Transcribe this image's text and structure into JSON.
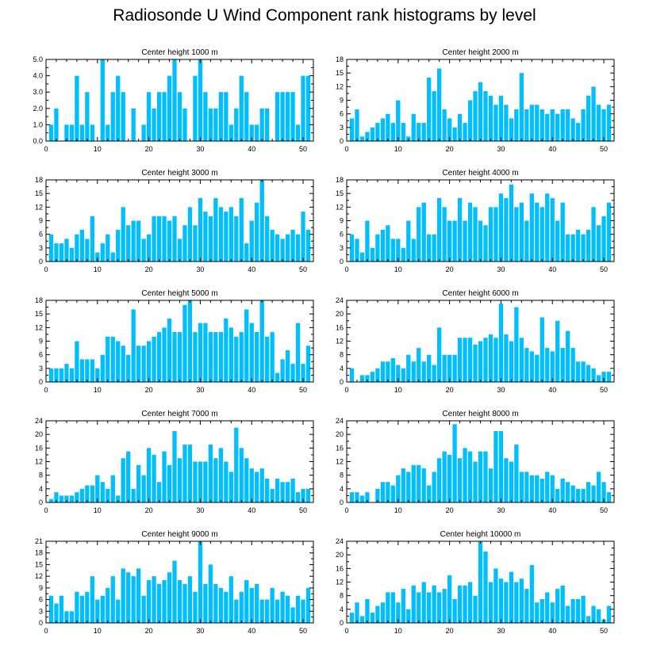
{
  "figure": {
    "title": "Radiosonde U Wind Component rank histograms by level",
    "bar_color": "#00bfff",
    "axis_color": "#000000"
  },
  "chart_data": [
    {
      "type": "bar",
      "title": "Center height 1000 m",
      "x": [
        1,
        2,
        3,
        4,
        5,
        6,
        7,
        8,
        9,
        10,
        11,
        12,
        13,
        14,
        15,
        16,
        17,
        18,
        19,
        20,
        21,
        22,
        23,
        24,
        25,
        26,
        27,
        28,
        29,
        30,
        31,
        32,
        33,
        34,
        35,
        36,
        37,
        38,
        39,
        40,
        41,
        42,
        43,
        44,
        45,
        46,
        47,
        48,
        49,
        50,
        51
      ],
      "values": [
        1,
        2,
        0,
        1,
        1,
        4,
        1,
        3,
        1,
        0,
        5,
        1,
        3,
        4,
        3,
        0,
        2,
        0,
        1,
        3,
        2,
        3,
        3,
        4,
        5,
        3,
        2,
        0,
        4,
        5,
        3,
        2,
        2,
        3,
        3,
        1,
        2,
        4,
        3,
        1,
        1,
        2,
        2,
        0,
        3,
        3,
        3,
        3,
        1,
        4,
        4
      ],
      "ylim": [
        0,
        5
      ],
      "yticks": [
        "0.0",
        "1.0",
        "2.0",
        "3.0",
        "4.0",
        "5.0"
      ],
      "ytick_values": [
        0,
        1,
        2,
        3,
        4,
        5
      ],
      "xlim": [
        0,
        52
      ],
      "xticks": [
        "0",
        "10",
        "20",
        "30",
        "40",
        "50"
      ],
      "xtick_values": [
        0,
        10,
        20,
        30,
        40,
        50
      ]
    },
    {
      "type": "bar",
      "title": "Center height 2000 m",
      "x": [
        1,
        2,
        3,
        4,
        5,
        6,
        7,
        8,
        9,
        10,
        11,
        12,
        13,
        14,
        15,
        16,
        17,
        18,
        19,
        20,
        21,
        22,
        23,
        24,
        25,
        26,
        27,
        28,
        29,
        30,
        31,
        32,
        33,
        34,
        35,
        36,
        37,
        38,
        39,
        40,
        41,
        42,
        43,
        44,
        45,
        46,
        47,
        48,
        49,
        50,
        51
      ],
      "values": [
        5,
        7,
        1,
        2,
        3,
        4,
        5,
        6,
        4,
        9,
        4,
        1,
        6,
        4,
        4,
        14,
        11,
        16,
        7,
        5,
        3,
        6,
        4,
        9,
        11,
        13,
        11,
        10,
        8,
        10,
        8,
        5,
        7,
        15,
        7,
        8,
        8,
        7,
        6,
        7,
        6,
        7,
        7,
        5,
        4,
        7,
        10,
        12,
        8,
        7,
        8
      ],
      "ylim": [
        0,
        18
      ],
      "yticks": [
        "0",
        "3",
        "6",
        "9",
        "12",
        "15",
        "18"
      ],
      "ytick_values": [
        0,
        3,
        6,
        9,
        12,
        15,
        18
      ],
      "xlim": [
        0,
        52
      ],
      "xticks": [
        "0",
        "10",
        "20",
        "30",
        "40",
        "50"
      ],
      "xtick_values": [
        0,
        10,
        20,
        30,
        40,
        50
      ]
    },
    {
      "type": "bar",
      "title": "Center height 3000 m",
      "x": [
        1,
        2,
        3,
        4,
        5,
        6,
        7,
        8,
        9,
        10,
        11,
        12,
        13,
        14,
        15,
        16,
        17,
        18,
        19,
        20,
        21,
        22,
        23,
        24,
        25,
        26,
        27,
        28,
        29,
        30,
        31,
        32,
        33,
        34,
        35,
        36,
        37,
        38,
        39,
        40,
        41,
        42,
        43,
        44,
        45,
        46,
        47,
        48,
        49,
        50,
        51
      ],
      "values": [
        6,
        4,
        4,
        5,
        3,
        6,
        7,
        5,
        10,
        2,
        4,
        6,
        2,
        7,
        12,
        8,
        9,
        9,
        5,
        6,
        10,
        10,
        10,
        9,
        10,
        5,
        8,
        12,
        8,
        14,
        11,
        10,
        14,
        12,
        11,
        12,
        10,
        14,
        4,
        9,
        13,
        18,
        10,
        7,
        6,
        5,
        6,
        7,
        6,
        11,
        7
      ],
      "ylim": [
        0,
        18
      ],
      "yticks": [
        "0",
        "3",
        "6",
        "9",
        "12",
        "15",
        "18"
      ],
      "ytick_values": [
        0,
        3,
        6,
        9,
        12,
        15,
        18
      ],
      "xlim": [
        0,
        52
      ],
      "xticks": [
        "0",
        "10",
        "20",
        "30",
        "40",
        "50"
      ],
      "xtick_values": [
        0,
        10,
        20,
        30,
        40,
        50
      ]
    },
    {
      "type": "bar",
      "title": "Center height 4000 m",
      "x": [
        1,
        2,
        3,
        4,
        5,
        6,
        7,
        8,
        9,
        10,
        11,
        12,
        13,
        14,
        15,
        16,
        17,
        18,
        19,
        20,
        21,
        22,
        23,
        24,
        25,
        26,
        27,
        28,
        29,
        30,
        31,
        32,
        33,
        34,
        35,
        36,
        37,
        38,
        39,
        40,
        41,
        42,
        43,
        44,
        45,
        46,
        47,
        48,
        49,
        50,
        51
      ],
      "values": [
        6,
        5,
        2,
        9,
        3,
        6,
        7,
        8,
        5,
        5,
        3,
        9,
        5,
        12,
        13,
        6,
        6,
        14,
        12,
        9,
        9,
        14,
        9,
        13,
        12,
        9,
        8,
        12,
        12,
        15,
        14,
        17,
        12,
        13,
        9,
        15,
        13,
        12,
        15,
        14,
        9,
        13,
        6,
        6,
        7,
        6,
        7,
        12,
        8,
        10,
        13
      ],
      "ylim": [
        0,
        18
      ],
      "yticks": [
        "0",
        "3",
        "6",
        "9",
        "12",
        "15",
        "18"
      ],
      "ytick_values": [
        0,
        3,
        6,
        9,
        12,
        15,
        18
      ],
      "xlim": [
        0,
        52
      ],
      "xticks": [
        "0",
        "10",
        "20",
        "30",
        "40",
        "50"
      ],
      "xtick_values": [
        0,
        10,
        20,
        30,
        40,
        50
      ]
    },
    {
      "type": "bar",
      "title": "Center height 5000 m",
      "x": [
        1,
        2,
        3,
        4,
        5,
        6,
        7,
        8,
        9,
        10,
        11,
        12,
        13,
        14,
        15,
        16,
        17,
        18,
        19,
        20,
        21,
        22,
        23,
        24,
        25,
        26,
        27,
        28,
        29,
        30,
        31,
        32,
        33,
        34,
        35,
        36,
        37,
        38,
        39,
        40,
        41,
        42,
        43,
        44,
        45,
        46,
        47,
        48,
        49,
        50,
        51
      ],
      "values": [
        3,
        3,
        3,
        4,
        3,
        9,
        5,
        5,
        5,
        3,
        6,
        10,
        10,
        9,
        8,
        6,
        16,
        8,
        8,
        9,
        10,
        11,
        12,
        14,
        11,
        11,
        17,
        18,
        11,
        13,
        13,
        11,
        11,
        11,
        14,
        12,
        10,
        11,
        16,
        13,
        11,
        18,
        10,
        11,
        2,
        5,
        7,
        4,
        13,
        4,
        8
      ],
      "ylim": [
        0,
        18
      ],
      "yticks": [
        "0",
        "3",
        "6",
        "9",
        "12",
        "15",
        "18"
      ],
      "ytick_values": [
        0,
        3,
        6,
        9,
        12,
        15,
        18
      ],
      "xlim": [
        0,
        52
      ],
      "xticks": [
        "0",
        "10",
        "20",
        "30",
        "40",
        "50"
      ],
      "xtick_values": [
        0,
        10,
        20,
        30,
        40,
        50
      ]
    },
    {
      "type": "bar",
      "title": "Center height 6000 m",
      "x": [
        1,
        2,
        3,
        4,
        5,
        6,
        7,
        8,
        9,
        10,
        11,
        12,
        13,
        14,
        15,
        16,
        17,
        18,
        19,
        20,
        21,
        22,
        23,
        24,
        25,
        26,
        27,
        28,
        29,
        30,
        31,
        32,
        33,
        34,
        35,
        36,
        37,
        38,
        39,
        40,
        41,
        42,
        43,
        44,
        45,
        46,
        47,
        48,
        49,
        50,
        51
      ],
      "values": [
        4,
        0,
        2,
        2,
        3,
        4,
        6,
        6,
        7,
        5,
        4,
        8,
        6,
        10,
        6,
        8,
        5,
        16,
        8,
        8,
        8,
        13,
        13,
        13,
        11,
        12,
        13,
        14,
        13,
        23,
        14,
        12,
        22,
        13,
        10,
        9,
        8,
        19,
        10,
        9,
        18,
        10,
        15,
        10,
        6,
        6,
        5,
        4,
        2,
        3,
        3
      ],
      "ylim": [
        0,
        24
      ],
      "yticks": [
        "0",
        "4",
        "8",
        "12",
        "16",
        "20",
        "24"
      ],
      "ytick_values": [
        0,
        4,
        8,
        12,
        16,
        20,
        24
      ],
      "xlim": [
        0,
        52
      ],
      "xticks": [
        "0",
        "10",
        "20",
        "30",
        "40",
        "50"
      ],
      "xtick_values": [
        0,
        10,
        20,
        30,
        40,
        50
      ]
    },
    {
      "type": "bar",
      "title": "Center height 7000 m",
      "x": [
        1,
        2,
        3,
        4,
        5,
        6,
        7,
        8,
        9,
        10,
        11,
        12,
        13,
        14,
        15,
        16,
        17,
        18,
        19,
        20,
        21,
        22,
        23,
        24,
        25,
        26,
        27,
        28,
        29,
        30,
        31,
        32,
        33,
        34,
        35,
        36,
        37,
        38,
        39,
        40,
        41,
        42,
        43,
        44,
        45,
        46,
        47,
        48,
        49,
        50,
        51
      ],
      "values": [
        1,
        3,
        2,
        2,
        2,
        3,
        4,
        5,
        5,
        8,
        6,
        4,
        8,
        2,
        13,
        15,
        4,
        11,
        8,
        16,
        14,
        6,
        15,
        11,
        21,
        13,
        17,
        17,
        12,
        12,
        12,
        17,
        13,
        16,
        12,
        9,
        22,
        16,
        13,
        10,
        9,
        10,
        7,
        4,
        7,
        6,
        6,
        7,
        3,
        4,
        4
      ],
      "ylim": [
        0,
        24
      ],
      "yticks": [
        "0",
        "4",
        "8",
        "12",
        "16",
        "20",
        "24"
      ],
      "ytick_values": [
        0,
        4,
        8,
        12,
        16,
        20,
        24
      ],
      "xlim": [
        0,
        52
      ],
      "xticks": [
        "0",
        "10",
        "20",
        "30",
        "40",
        "50"
      ],
      "xtick_values": [
        0,
        10,
        20,
        30,
        40,
        50
      ]
    },
    {
      "type": "bar",
      "title": "Center height 8000 m",
      "x": [
        1,
        2,
        3,
        4,
        5,
        6,
        7,
        8,
        9,
        10,
        11,
        12,
        13,
        14,
        15,
        16,
        17,
        18,
        19,
        20,
        21,
        22,
        23,
        24,
        25,
        26,
        27,
        28,
        29,
        30,
        31,
        32,
        33,
        34,
        35,
        36,
        37,
        38,
        39,
        40,
        41,
        42,
        43,
        44,
        45,
        46,
        47,
        48,
        49,
        50,
        51
      ],
      "values": [
        3,
        3,
        2,
        3,
        0,
        4,
        6,
        6,
        5,
        8,
        10,
        9,
        11,
        11,
        10,
        5,
        9,
        13,
        15,
        14,
        23,
        13,
        16,
        15,
        12,
        15,
        15,
        10,
        21,
        21,
        13,
        12,
        17,
        9,
        9,
        8,
        8,
        7,
        9,
        8,
        4,
        7,
        6,
        5,
        4,
        4,
        6,
        5,
        9,
        6,
        3
      ],
      "ylim": [
        0,
        24
      ],
      "yticks": [
        "0",
        "4",
        "8",
        "12",
        "16",
        "20",
        "24"
      ],
      "ytick_values": [
        0,
        4,
        8,
        12,
        16,
        20,
        24
      ],
      "xlim": [
        0,
        52
      ],
      "xticks": [
        "0",
        "10",
        "20",
        "30",
        "40",
        "50"
      ],
      "xtick_values": [
        0,
        10,
        20,
        30,
        40,
        50
      ]
    },
    {
      "type": "bar",
      "title": "Center height 9000 m",
      "x": [
        1,
        2,
        3,
        4,
        5,
        6,
        7,
        8,
        9,
        10,
        11,
        12,
        13,
        14,
        15,
        16,
        17,
        18,
        19,
        20,
        21,
        22,
        23,
        24,
        25,
        26,
        27,
        28,
        29,
        30,
        31,
        32,
        33,
        34,
        35,
        36,
        37,
        38,
        39,
        40,
        41,
        42,
        43,
        44,
        45,
        46,
        47,
        48,
        49,
        50,
        51
      ],
      "values": [
        7,
        5,
        7,
        3,
        3,
        8,
        7,
        8,
        12,
        6,
        7,
        9,
        12,
        6,
        14,
        13,
        12,
        14,
        7,
        11,
        12,
        10,
        11,
        13,
        16,
        11,
        10,
        12,
        8,
        21,
        10,
        15,
        10,
        9,
        8,
        12,
        6,
        8,
        11,
        9,
        10,
        6,
        6,
        9,
        6,
        8,
        7,
        4,
        7,
        6,
        9
      ],
      "ylim": [
        0,
        21
      ],
      "yticks": [
        "0",
        "3",
        "6",
        "9",
        "12",
        "15",
        "18",
        "21"
      ],
      "ytick_values": [
        0,
        3,
        6,
        9,
        12,
        15,
        18,
        21
      ],
      "xlim": [
        0,
        52
      ],
      "xticks": [
        "0",
        "10",
        "20",
        "30",
        "40",
        "50"
      ],
      "xtick_values": [
        0,
        10,
        20,
        30,
        40,
        50
      ]
    },
    {
      "type": "bar",
      "title": "Center height 10000 m",
      "x": [
        1,
        2,
        3,
        4,
        5,
        6,
        7,
        8,
        9,
        10,
        11,
        12,
        13,
        14,
        15,
        16,
        17,
        18,
        19,
        20,
        21,
        22,
        23,
        24,
        25,
        26,
        27,
        28,
        29,
        30,
        31,
        32,
        33,
        34,
        35,
        36,
        37,
        38,
        39,
        40,
        41,
        42,
        43,
        44,
        45,
        46,
        47,
        48,
        49,
        50,
        51
      ],
      "values": [
        3,
        6,
        2,
        7,
        3,
        5,
        6,
        9,
        9,
        6,
        10,
        4,
        11,
        9,
        12,
        9,
        11,
        9,
        10,
        14,
        7,
        11,
        11,
        12,
        8,
        24,
        21,
        12,
        16,
        13,
        12,
        15,
        12,
        13,
        10,
        17,
        6,
        7,
        9,
        6,
        10,
        11,
        5,
        7,
        7,
        8,
        2,
        5,
        4,
        1,
        5
      ],
      "ylim": [
        0,
        24
      ],
      "yticks": [
        "0",
        "4",
        "8",
        "12",
        "16",
        "20",
        "24"
      ],
      "ytick_values": [
        0,
        4,
        8,
        12,
        16,
        20,
        24
      ],
      "xlim": [
        0,
        52
      ],
      "xticks": [
        "0",
        "10",
        "20",
        "30",
        "40",
        "50"
      ],
      "xtick_values": [
        0,
        10,
        20,
        30,
        40,
        50
      ]
    }
  ]
}
